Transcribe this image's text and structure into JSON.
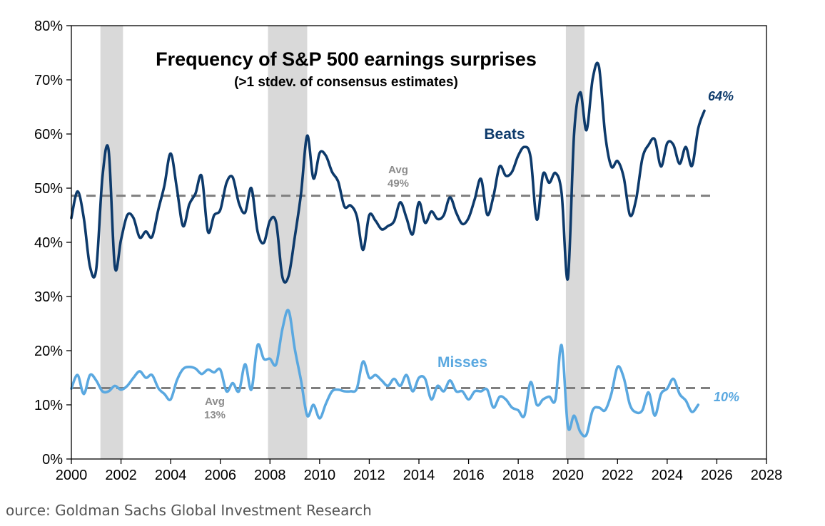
{
  "chart_data": {
    "type": "line",
    "title": "Frequency of S&P 500 earnings surprises",
    "subtitle": "(>1 stdev. of consensus estimates)",
    "xlabel": "",
    "ylabel": "",
    "xlim": [
      2000,
      2028
    ],
    "ylim": [
      0,
      80
    ],
    "x_ticks": [
      "2000",
      "2002",
      "2004",
      "2006",
      "2008",
      "2010",
      "2012",
      "2014",
      "2016",
      "2018",
      "2020",
      "2022",
      "2024",
      "2026",
      "2028"
    ],
    "x_tick_values": [
      2000,
      2002,
      2004,
      2006,
      2008,
      2010,
      2012,
      2014,
      2016,
      2018,
      2020,
      2022,
      2024,
      2026,
      2028
    ],
    "y_ticks": [
      "0%",
      "10%",
      "20%",
      "30%",
      "40%",
      "50%",
      "60%",
      "70%",
      "80%"
    ],
    "y_tick_values": [
      0,
      10,
      20,
      30,
      40,
      50,
      60,
      70,
      80
    ],
    "grid": false,
    "recessions": [
      [
        2001.17,
        2002.08
      ],
      [
        2007.92,
        2009.5
      ],
      [
        2019.92,
        2020.67
      ]
    ],
    "series": [
      {
        "name": "Beats",
        "label": "Beats",
        "color": "#0d3a6b",
        "end_label": "64%",
        "avg_value": 48.6,
        "avg_label_line1": "Avg",
        "avg_label_line2": "49%",
        "x": [
          2000.0,
          2000.25,
          2000.5,
          2000.75,
          2001.0,
          2001.25,
          2001.5,
          2001.75,
          2002.0,
          2002.25,
          2002.5,
          2002.75,
          2003.0,
          2003.25,
          2003.5,
          2003.75,
          2004.0,
          2004.25,
          2004.5,
          2004.75,
          2005.0,
          2005.25,
          2005.5,
          2005.75,
          2006.0,
          2006.25,
          2006.5,
          2006.75,
          2007.0,
          2007.25,
          2007.5,
          2007.75,
          2008.0,
          2008.25,
          2008.5,
          2008.75,
          2009.0,
          2009.25,
          2009.5,
          2009.75,
          2010.0,
          2010.25,
          2010.5,
          2010.75,
          2011.0,
          2011.25,
          2011.5,
          2011.75,
          2012.0,
          2012.25,
          2012.5,
          2012.75,
          2013.0,
          2013.25,
          2013.5,
          2013.75,
          2014.0,
          2014.25,
          2014.5,
          2014.75,
          2015.0,
          2015.25,
          2015.5,
          2015.75,
          2016.0,
          2016.25,
          2016.5,
          2016.75,
          2017.0,
          2017.25,
          2017.5,
          2017.75,
          2018.0,
          2018.25,
          2018.5,
          2018.75,
          2019.0,
          2019.25,
          2019.5,
          2019.75,
          2020.0,
          2020.25,
          2020.5,
          2020.75,
          2021.0,
          2021.25,
          2021.5,
          2021.75,
          2022.0,
          2022.25,
          2022.5,
          2022.75,
          2023.0,
          2023.25,
          2023.5,
          2023.75,
          2024.0,
          2024.25,
          2024.5,
          2024.75,
          2025.0,
          2025.25,
          2025.5,
          2025.75
        ],
        "values": [
          44.5,
          49.4,
          44.5,
          35.5,
          35,
          52,
          57,
          35.5,
          40.5,
          45,
          44.5,
          40.9,
          42,
          41,
          46,
          50.5,
          56.4,
          50,
          43,
          47,
          49,
          52.2,
          42,
          45,
          46,
          51,
          52,
          47.2,
          45.5,
          50,
          42,
          39.9,
          44,
          43.6,
          33.6,
          33.8,
          41,
          49,
          59.7,
          51.8,
          56.5,
          56,
          53,
          51.2,
          46.6,
          46.8,
          44.8,
          38.6,
          45,
          44,
          42.4,
          43,
          43.9,
          47.4,
          44.5,
          41.5,
          47.4,
          43.6,
          45.7,
          44.3,
          45,
          48.3,
          45.5,
          43.4,
          44.5,
          48,
          51.7,
          45.1,
          48.5,
          54,
          52.3,
          53,
          56,
          57.6,
          55.7,
          44.2,
          52.6,
          51,
          52.8,
          49,
          33.3,
          60,
          67.7,
          60.7,
          70.2,
          72.5,
          60,
          54,
          55,
          52,
          45,
          48,
          55.5,
          58,
          59,
          54,
          58.3,
          58,
          54.5,
          57.6,
          54.1,
          61,
          64.3,
          null
        ]
      },
      {
        "name": "Misses",
        "label": "Misses",
        "color": "#5aa8e0",
        "end_label": "10%",
        "avg_value": 13.1,
        "avg_label_line1": "Avg",
        "avg_label_line2": "13%",
        "x": [
          2000.0,
          2000.25,
          2000.5,
          2000.75,
          2001.0,
          2001.25,
          2001.5,
          2001.75,
          2002.0,
          2002.25,
          2002.5,
          2002.75,
          2003.0,
          2003.25,
          2003.5,
          2003.75,
          2004.0,
          2004.25,
          2004.5,
          2004.75,
          2005.0,
          2005.25,
          2005.5,
          2005.75,
          2006.0,
          2006.25,
          2006.5,
          2006.75,
          2007.0,
          2007.25,
          2007.5,
          2007.75,
          2008.0,
          2008.25,
          2008.5,
          2008.75,
          2009.0,
          2009.25,
          2009.5,
          2009.75,
          2010.0,
          2010.25,
          2010.5,
          2010.75,
          2011.0,
          2011.25,
          2011.5,
          2011.75,
          2012.0,
          2012.25,
          2012.5,
          2012.75,
          2013.0,
          2013.25,
          2013.5,
          2013.75,
          2014.0,
          2014.25,
          2014.5,
          2014.75,
          2015.0,
          2015.25,
          2015.5,
          2015.75,
          2016.0,
          2016.25,
          2016.5,
          2016.75,
          2017.0,
          2017.25,
          2017.5,
          2017.75,
          2018.0,
          2018.25,
          2018.5,
          2018.75,
          2019.0,
          2019.25,
          2019.5,
          2019.75,
          2020.0,
          2020.25,
          2020.5,
          2020.75,
          2021.0,
          2021.25,
          2021.5,
          2021.75,
          2022.0,
          2022.25,
          2022.5,
          2022.75,
          2023.0,
          2023.25,
          2023.5,
          2023.75,
          2024.0,
          2024.25,
          2024.5,
          2024.75,
          2025.0,
          2025.25,
          2025.5,
          2025.75
        ],
        "values": [
          13,
          15.5,
          12,
          15.5,
          14.5,
          12.5,
          12.5,
          13.5,
          12.8,
          13.5,
          15,
          16.2,
          15,
          15.5,
          13.1,
          12,
          11,
          14.5,
          16.6,
          17,
          16.7,
          15.7,
          16.5,
          16,
          16.5,
          12.5,
          14,
          12.5,
          17.5,
          12.8,
          21,
          18.5,
          18.5,
          17.5,
          24,
          27.4,
          20.3,
          14.5,
          8,
          10,
          7.5,
          10.2,
          12.5,
          12.8,
          12.5,
          12.5,
          13,
          18,
          15,
          15.5,
          14.5,
          13.5,
          14.8,
          13.5,
          15.5,
          12.5,
          15,
          14.8,
          11,
          13.5,
          12.5,
          14.5,
          12.5,
          12.5,
          11,
          12.5,
          12.5,
          12.8,
          9.5,
          11.5,
          11,
          9.5,
          9,
          8,
          14.2,
          10,
          11,
          11.5,
          11,
          21,
          6,
          8,
          5,
          4.5,
          9,
          9.5,
          9,
          12,
          17,
          15,
          10,
          8.6,
          9,
          12.3,
          8,
          12,
          13,
          14.8,
          12,
          10.8,
          8.7,
          10,
          null,
          null
        ]
      }
    ]
  },
  "footer": {
    "source": "ource: Goldman Sachs Global Investment Research"
  }
}
